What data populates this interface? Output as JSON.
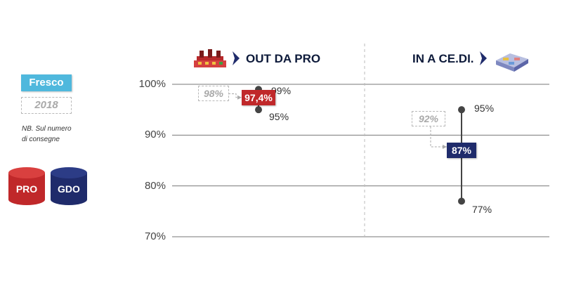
{
  "legend": {
    "category": "Fresco",
    "year": "2018",
    "note_line1": "NB. Sul numero",
    "note_line2": "di consegne",
    "pro_label": "PRO",
    "gdo_label": "GDO",
    "pro_color": "#c0282a",
    "gdo_color": "#1f2b6b"
  },
  "chart_data": {
    "type": "range",
    "ylim": [
      70,
      100
    ],
    "yticks": [
      "100%",
      "90%",
      "80%",
      "70%"
    ],
    "ytick_values": [
      100,
      90,
      80,
      70
    ],
    "panels": [
      {
        "title": "OUT DA PRO",
        "color": "#c0282a",
        "high": 99,
        "high_label": "99%",
        "low": 95,
        "low_label": "95%",
        "value": 97.4,
        "value_label": "97,4%",
        "previous": 98,
        "previous_label": "98%"
      },
      {
        "title": "IN A CE.DI.",
        "color": "#1f2b6b",
        "high": 95,
        "high_label": "95%",
        "low": 77,
        "low_label": "77%",
        "value": 87,
        "value_label": "87%",
        "previous": 92,
        "previous_label": "92%"
      }
    ]
  }
}
